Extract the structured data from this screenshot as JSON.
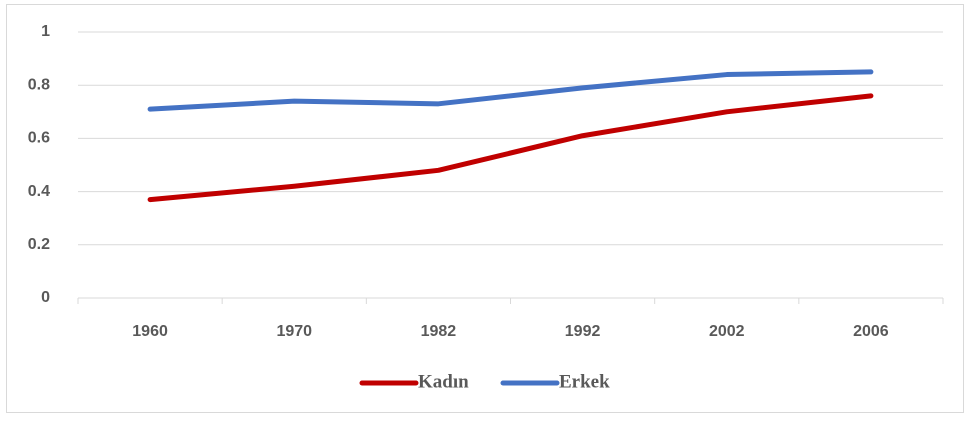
{
  "chart_data": {
    "type": "line",
    "categories": [
      "1960",
      "1970",
      "1982",
      "1992",
      "2002",
      "2006"
    ],
    "series": [
      {
        "name": "Kadın",
        "color": "#c00000",
        "values": [
          0.37,
          0.42,
          0.48,
          0.61,
          0.7,
          0.76
        ]
      },
      {
        "name": "Erkek",
        "color": "#4472c4",
        "values": [
          0.71,
          0.74,
          0.73,
          0.79,
          0.84,
          0.85
        ]
      }
    ],
    "ylim": [
      0,
      1
    ],
    "yticks": [
      0,
      0.2,
      0.4,
      0.6,
      0.8,
      1
    ],
    "grid": true,
    "legend": "bottom"
  }
}
